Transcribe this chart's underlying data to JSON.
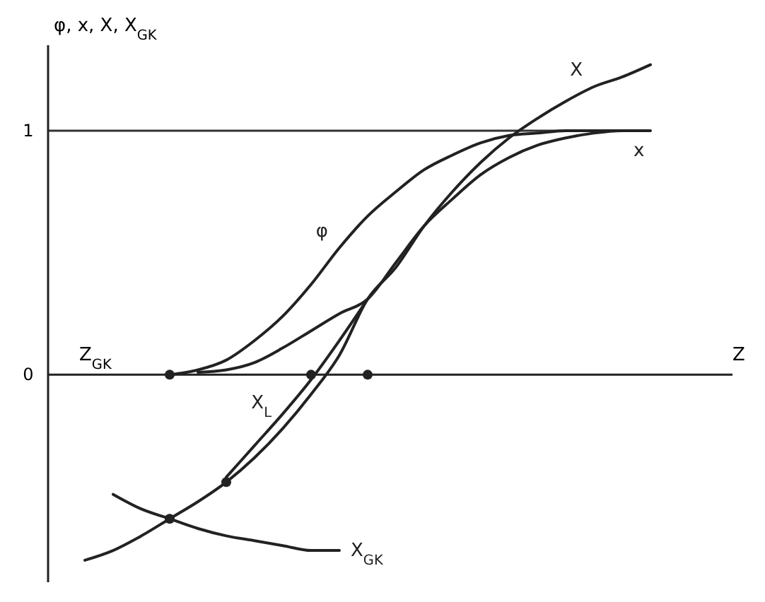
{
  "chart_data": {
    "type": "line",
    "ylabel": "φ, x, X, X$_{GK}$",
    "xlabel": "Z",
    "categories": [
      null,
      null,
      null,
      null,
      null,
      null,
      null,
      null,
      null,
      null,
      null,
      null,
      null,
      null,
      null,
      null,
      null,
      null,
      null,
      null,
      null,
      null,
      null,
      null,
      null
    ],
    "ylim": [
      -0.85,
      1.35
    ],
    "yticks": [
      0,
      1
    ],
    "grid": false,
    "marker": "none",
    "line_style": "solid",
    "series": [
      {
        "name": "X",
        "color": "#222222",
        "values": [
          null,
          -0.76,
          -0.72,
          -0.66,
          -0.59,
          -0.52,
          -0.44,
          -0.34,
          -0.22,
          -0.08,
          0.08,
          0.31,
          0.44,
          0.61,
          0.75,
          0.87,
          0.97,
          1.05,
          1.12,
          1.18,
          1.22,
          1.27,
          null,
          null,
          null
        ]
      },
      {
        "name": "φ",
        "color": "#222222",
        "values": [
          null,
          null,
          null,
          null,
          0,
          0.02,
          0.06,
          0.14,
          0.24,
          0.37,
          0.52,
          0.65,
          0.75,
          0.84,
          0.9,
          0.95,
          0.98,
          0.99,
          1,
          1,
          1,
          null,
          null,
          null,
          null
        ]
      },
      {
        "name": "x",
        "color": "#222222",
        "values": [
          null,
          null,
          null,
          null,
          null,
          0.01,
          0.02,
          0.05,
          0.11,
          0.18,
          0.25,
          0.31,
          0.46,
          0.61,
          0.72,
          0.82,
          0.89,
          0.94,
          0.97,
          0.99,
          1,
          1,
          null,
          null,
          null
        ]
      },
      {
        "name": "X$_{L}$",
        "color": "#222222",
        "values": [
          null,
          null,
          null,
          null,
          null,
          null,
          -0.42,
          -0.29,
          -0.16,
          -0.02,
          0.14,
          0.31,
          null,
          null,
          null,
          null,
          null,
          null,
          null,
          null,
          null,
          null,
          null,
          null,
          null
        ]
      },
      {
        "name": "X$_{GK}$",
        "color": "#222222",
        "values": [
          null,
          null,
          -0.49,
          -0.55,
          -0.59,
          -0.63,
          -0.66,
          -0.68,
          -0.7,
          -0.72,
          -0.72,
          null,
          null,
          null,
          null,
          null,
          null,
          null,
          null,
          null,
          null,
          null,
          null,
          null,
          null
        ]
      },
      {
        "type": "scatter",
        "marker": "circle",
        "color": "#222222",
        "values": [
          null,
          null,
          null,
          null,
          0,
          null,
          null,
          null,
          null,
          0,
          null,
          0,
          null,
          null,
          null,
          null,
          null,
          null,
          null,
          null,
          null,
          null,
          null,
          null,
          null
        ]
      },
      {
        "type": "scatter",
        "marker": "circle",
        "color": "#222222",
        "values": [
          null,
          null,
          null,
          null,
          -0.59,
          null,
          -0.44,
          null,
          null,
          null,
          null,
          null,
          null,
          null,
          null,
          null,
          null,
          null,
          null,
          null,
          null,
          null,
          null,
          null,
          null
        ]
      }
    ],
    "ref_lines": [
      {
        "axis": "y",
        "value": 1,
        "color": "#333333",
        "line_style": "solid"
      }
    ],
    "annotations": [
      "Z$_{GK}$"
    ]
  }
}
